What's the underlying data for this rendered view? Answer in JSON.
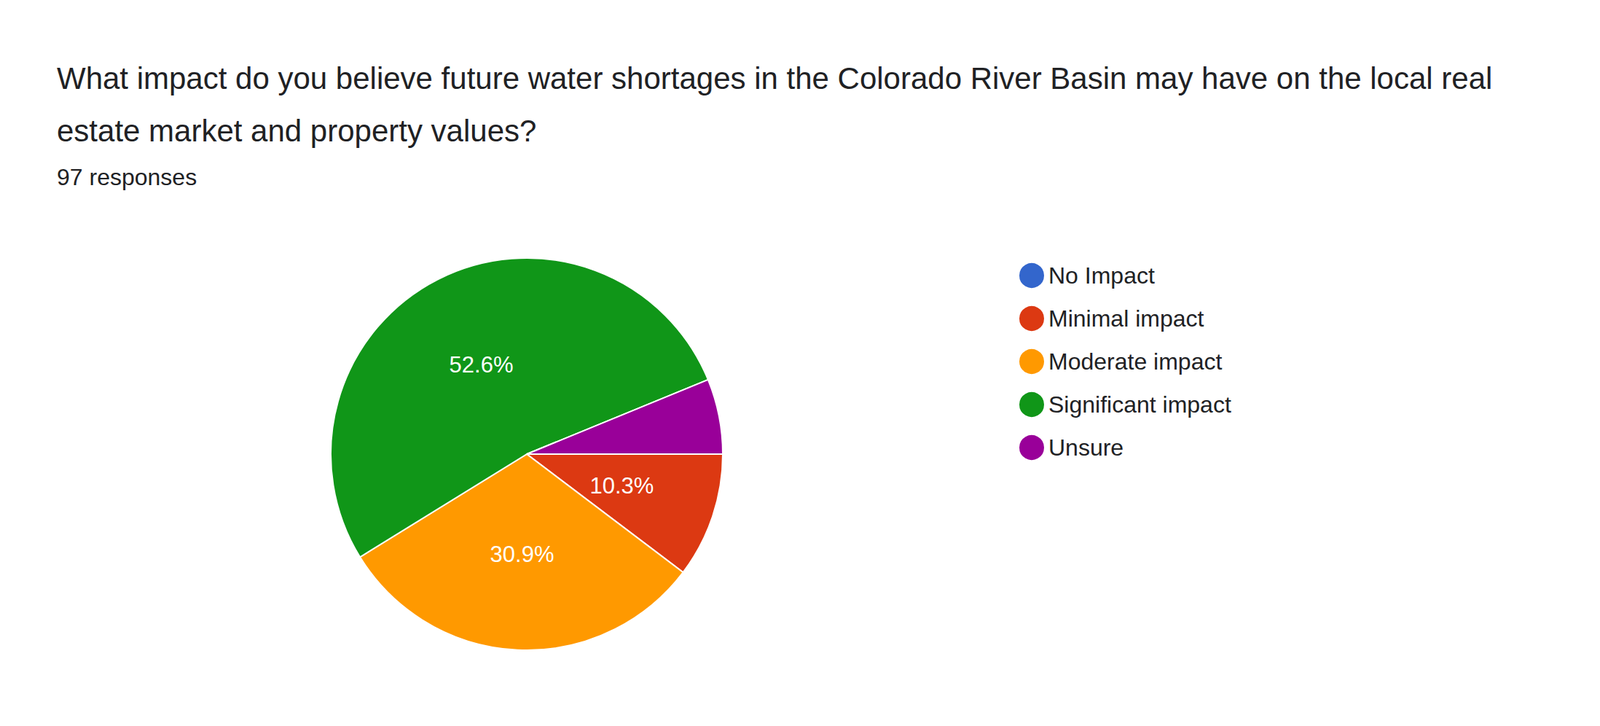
{
  "chart_data": {
    "type": "pie",
    "title": "What impact do you believe future water shortages in the Colorado River Basin may have on the local real estate market and property values?",
    "subtitle": "97 responses",
    "categories": [
      "No Impact",
      "Minimal impact",
      "Moderate impact",
      "Significant impact",
      "Unsure"
    ],
    "values": [
      0,
      10.3,
      30.9,
      52.6,
      6.2
    ],
    "value_labels": [
      null,
      "10.3%",
      "30.9%",
      "52.6%",
      null
    ],
    "colors": [
      "#3366cc",
      "#dc3912",
      "#ff9900",
      "#109618",
      "#990099"
    ],
    "data_labels": true,
    "legend": "right"
  }
}
